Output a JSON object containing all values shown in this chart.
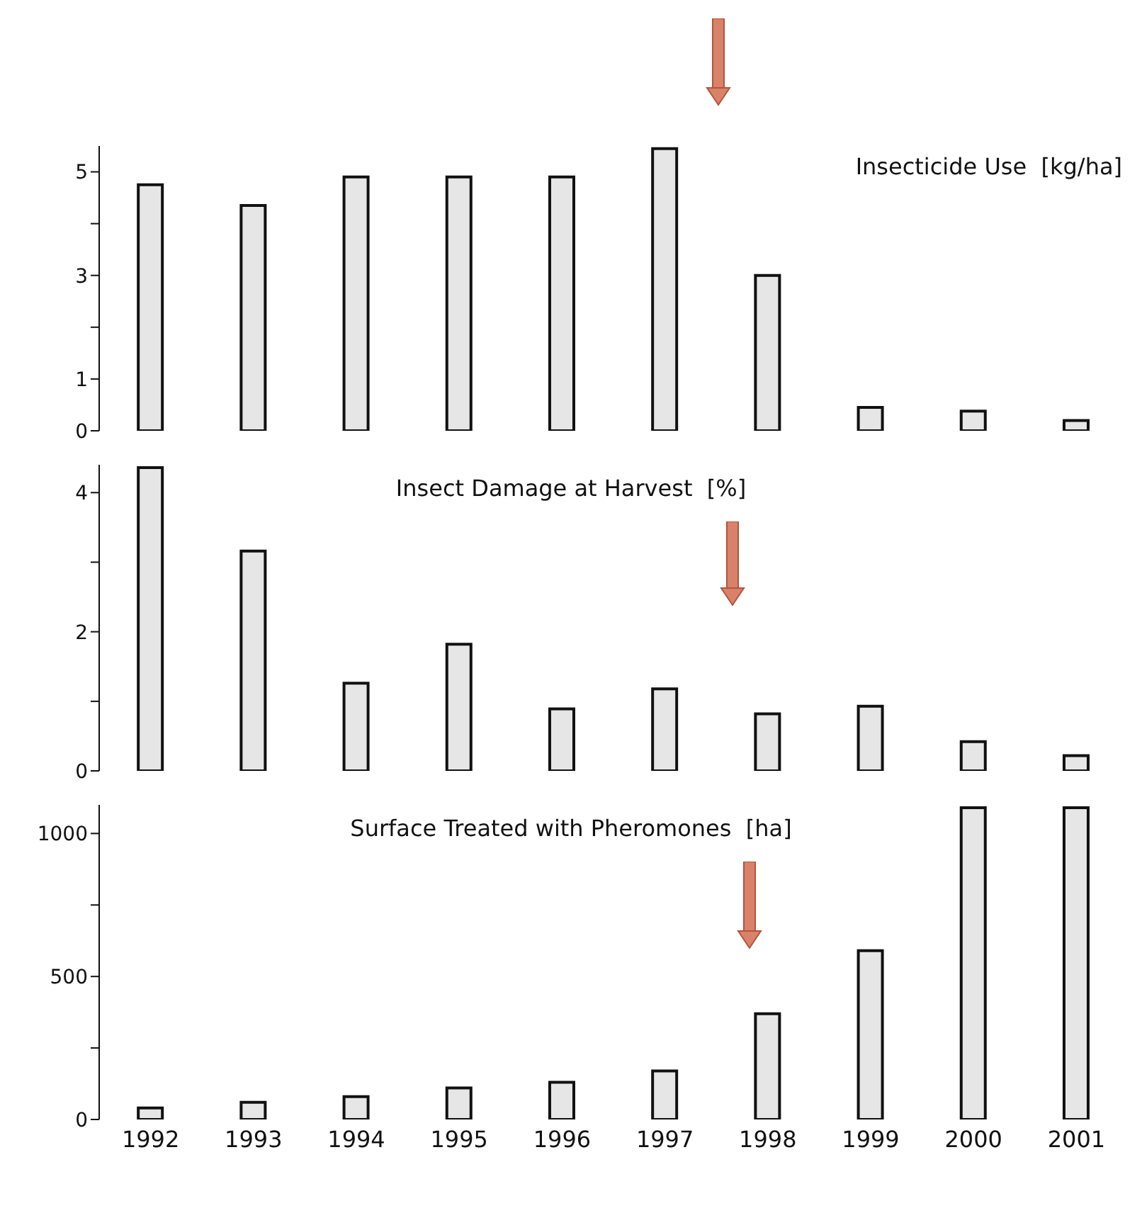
{
  "chart_data": [
    {
      "type": "bar",
      "title": "Insecticide Use  [kg/ha]",
      "categories": [
        "1992",
        "1993",
        "1994",
        "1995",
        "1996",
        "1997",
        "1998",
        "1999",
        "2000",
        "2001"
      ],
      "series": [
        {
          "color": "#e6e6e6",
          "values": [
            4.75,
            4.35,
            4.9,
            4.9,
            4.9,
            5.45,
            3.0,
            0.45,
            0.38,
            0.2
          ]
        }
      ],
      "ylim": [
        0,
        5.5
      ],
      "yticks": [
        0,
        1,
        {
          "value": 2,
          "label": null
        },
        3,
        {
          "value": 4,
          "label": null
        },
        5
      ],
      "tick_labels": "y",
      "grid": false,
      "legend": false
    },
    {
      "type": "bar",
      "title": "Insect Damage at Harvest  [%]",
      "categories": [
        "1992",
        "1993",
        "1994",
        "1995",
        "1996",
        "1997",
        "1998",
        "1999",
        "2000",
        "2001"
      ],
      "series": [
        {
          "color": "#e6e6e6",
          "values": [
            4.36,
            3.16,
            1.26,
            1.82,
            0.89,
            1.18,
            0.82,
            0.93,
            0.42,
            0.22
          ]
        }
      ],
      "ylim": [
        0,
        4.4
      ],
      "yticks": [
        0,
        {
          "value": 1,
          "label": null
        },
        2,
        {
          "value": 3,
          "label": null
        },
        4
      ],
      "tick_labels": "y",
      "grid": false,
      "legend": false
    },
    {
      "type": "bar",
      "title": "Surface Treated with Pheromones  [ha]",
      "categories": [
        "1992",
        "1993",
        "1994",
        "1995",
        "1996",
        "1997",
        "1998",
        "1999",
        "2000",
        "2001"
      ],
      "series": [
        {
          "color": "#e6e6e6",
          "values": [
            40,
            60,
            80,
            110,
            130,
            170,
            370,
            590,
            1090,
            1090
          ]
        }
      ],
      "ylim": [
        0,
        1100
      ],
      "yticks": [
        0,
        {
          "value": 250,
          "label": null
        },
        500,
        {
          "value": 750,
          "label": null
        },
        1000
      ],
      "grid": false,
      "legend": false
    }
  ]
}
